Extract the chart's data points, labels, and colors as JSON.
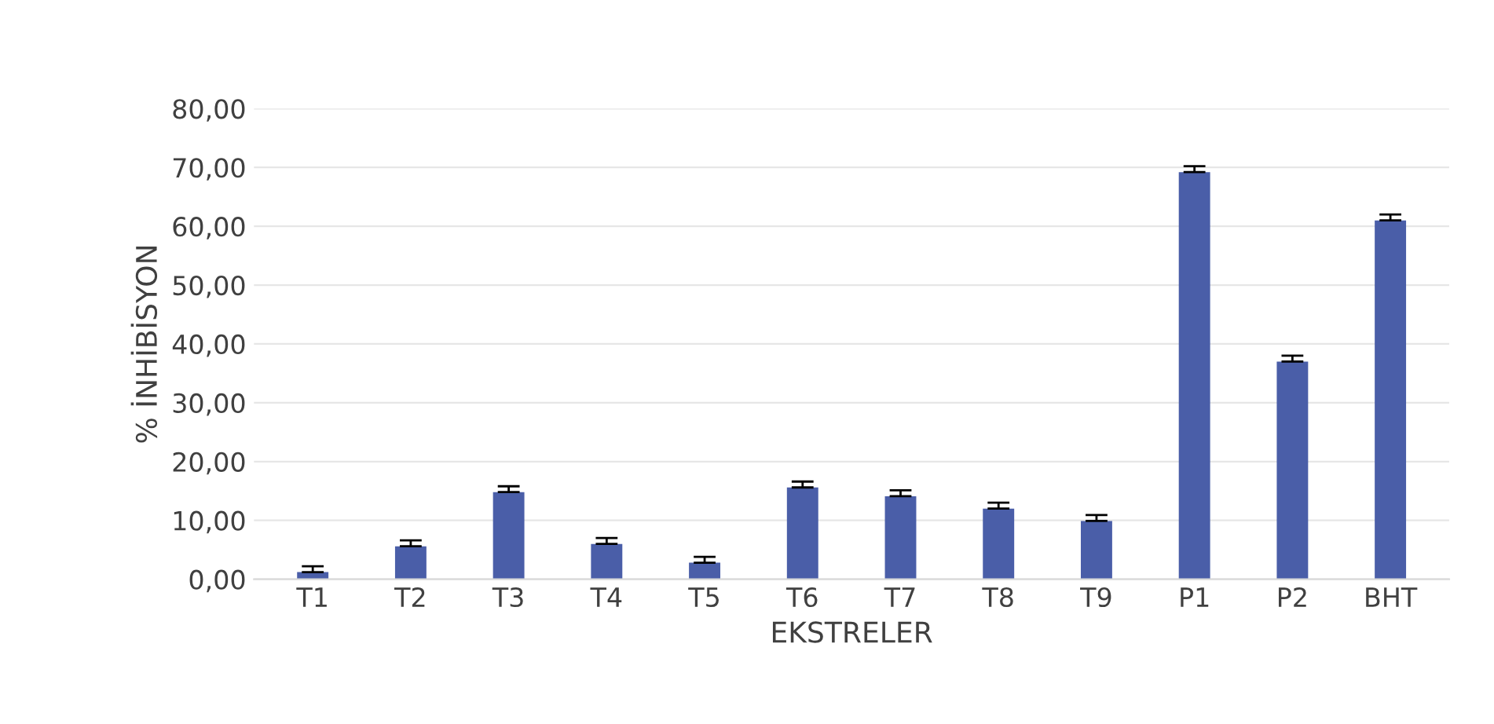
{
  "chart_data": {
    "type": "bar",
    "xlabel": "EKSTRELER",
    "ylabel": "% İNHİBİSYON",
    "categories": [
      "T1",
      "T2",
      "T3",
      "T4",
      "T5",
      "T6",
      "T7",
      "T8",
      "T9",
      "P1",
      "P2",
      "BHT"
    ],
    "values": [
      1.2,
      5.6,
      14.8,
      6.0,
      2.8,
      15.6,
      14.1,
      12.0,
      9.9,
      69.2,
      37.0,
      61.0
    ],
    "errors": [
      1.0,
      1.0,
      1.0,
      1.0,
      1.0,
      1.0,
      1.0,
      1.0,
      1.0,
      1.0,
      1.0,
      1.0
    ],
    "color": "#4a5ea8",
    "ylim": [
      0,
      80
    ],
    "yticks": [
      {
        "value": 0,
        "label": "0,00"
      },
      {
        "value": 10,
        "label": "10,00"
      },
      {
        "value": 20,
        "label": "20,00"
      },
      {
        "value": 30,
        "label": "30,00"
      },
      {
        "value": 40,
        "label": "40,00"
      },
      {
        "value": 50,
        "label": "50,00"
      },
      {
        "value": 60,
        "label": "60,00"
      },
      {
        "value": 70,
        "label": "70,00"
      },
      {
        "value": 80,
        "label": "80,00"
      }
    ],
    "grid": "y"
  }
}
